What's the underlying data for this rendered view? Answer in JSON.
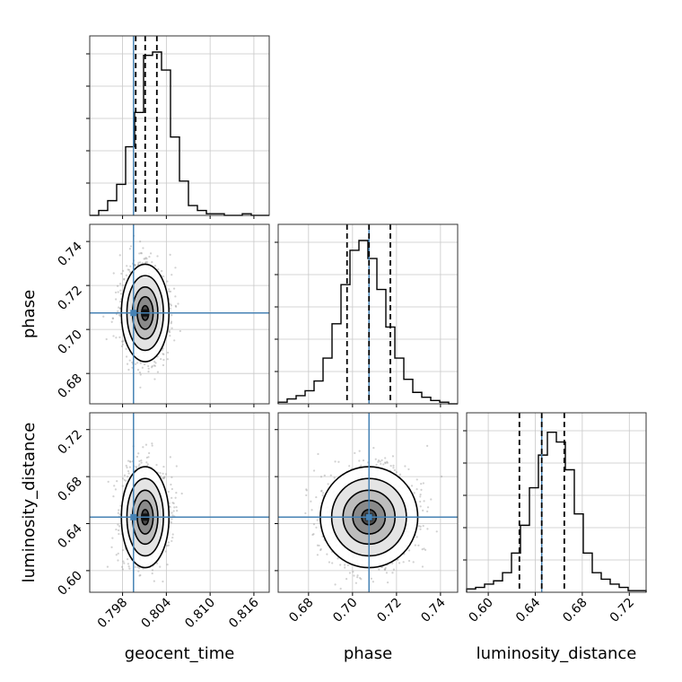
{
  "chart_data": {
    "type": "corner",
    "parameters": [
      "geocent_time",
      "phase",
      "luminosity_distance"
    ],
    "ranges": {
      "geocent_time": [
        0.7935,
        0.8181
      ],
      "phase": [
        0.6662,
        0.7478
      ],
      "luminosity_distance": [
        0.5816,
        0.7343
      ]
    },
    "truths": {
      "geocent_time": 0.7995,
      "phase": 0.7075,
      "luminosity_distance": 0.6455
    },
    "medians": {
      "geocent_time": 0.8011,
      "phase": 0.7075,
      "luminosity_distance": 0.6455
    },
    "quantiles": {
      "geocent_time": [
        0.7998,
        0.8027
      ],
      "phase": [
        0.6975,
        0.7172
      ],
      "luminosity_distance": [
        0.6265,
        0.6647
      ]
    },
    "ticks": {
      "geocent_time": [
        "0.798",
        "0.804",
        "0.810",
        "0.816"
      ],
      "phase": [
        "0.68",
        "0.70",
        "0.72",
        "0.74"
      ],
      "luminosity_distance": [
        "0.60",
        "0.64",
        "0.68",
        "0.72"
      ]
    },
    "tick_values": {
      "geocent_time": [
        0.798,
        0.804,
        0.81,
        0.816
      ],
      "phase": [
        0.68,
        0.7,
        0.72,
        0.74
      ],
      "luminosity_distance": [
        0.6,
        0.64,
        0.68,
        0.72
      ]
    },
    "histograms": {
      "geocent_time": {
        "range": [
          0.7935,
          0.8181
        ],
        "counts": [
          0,
          3,
          9,
          19,
          42,
          63,
          98,
          100,
          89,
          48,
          21,
          6,
          3,
          1,
          1,
          0,
          0,
          1,
          0,
          0
        ]
      },
      "phase": {
        "range": [
          0.6662,
          0.7478
        ],
        "counts": [
          1,
          3,
          5,
          8,
          14,
          28,
          49,
          73,
          94,
          100,
          89,
          70,
          47,
          28,
          15,
          7,
          4,
          2,
          1,
          0
        ]
      },
      "luminosity_distance": {
        "range": [
          0.5816,
          0.7343
        ],
        "counts": [
          2,
          3,
          5,
          7,
          12,
          24,
          41,
          64,
          84,
          98,
          92,
          75,
          48,
          24,
          12,
          8,
          5,
          3,
          1,
          1
        ]
      }
    },
    "blue_color": "#4682b4",
    "line_color": "#000000",
    "grid": true
  }
}
